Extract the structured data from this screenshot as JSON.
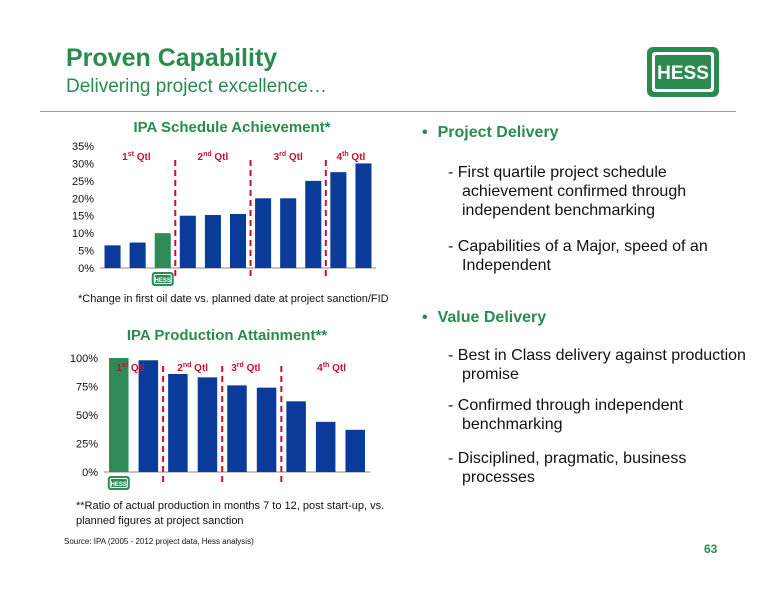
{
  "header": {
    "title": "Proven Capability",
    "subtitle": "Delivering project excellence…"
  },
  "logo": {
    "text": "HESS",
    "icon": "hess-logo"
  },
  "colors": {
    "green": "#2a8a4f",
    "bar_blue": "#0a3a9a",
    "bar_green": "#2e8b57",
    "quartile_red": "#c8102e"
  },
  "chart_data": [
    {
      "type": "bar",
      "title": "IPA Schedule Achievement*",
      "values": [
        6.5,
        7.3,
        10,
        15,
        15.2,
        15.5,
        20,
        20,
        25,
        27.5,
        30
      ],
      "highlight_index": 2,
      "yticks": [
        "0%",
        "5%",
        "10%",
        "15%",
        "20%",
        "25%",
        "30%",
        "35%"
      ],
      "ylim": [
        0,
        35
      ],
      "grid": false,
      "quartiles": [
        {
          "ordinal": "1",
          "suffix": "st",
          "label": "Qtl"
        },
        {
          "ordinal": "2",
          "suffix": "nd",
          "label": "Qtl"
        },
        {
          "ordinal": "3",
          "suffix": "rd",
          "label": "Qtl"
        },
        {
          "ordinal": "4",
          "suffix": "th",
          "label": "Qtl"
        }
      ],
      "footnote": "*Change in first oil date vs. planned date at project sanction/FID"
    },
    {
      "type": "bar",
      "title": "IPA Production Attainment**",
      "values": [
        100,
        98,
        86,
        83,
        76,
        74,
        62,
        44,
        37
      ],
      "highlight_index": 0,
      "yticks": [
        "0%",
        "25%",
        "50%",
        "75%",
        "100%"
      ],
      "ylim": [
        0,
        100
      ],
      "grid": false,
      "quartiles": [
        {
          "ordinal": "1",
          "suffix": "st",
          "label": "Qtl"
        },
        {
          "ordinal": "2",
          "suffix": "nd",
          "label": "Qtl"
        },
        {
          "ordinal": "3",
          "suffix": "rd",
          "label": "Qtl"
        },
        {
          "ordinal": "4",
          "suffix": "th",
          "label": "Qtl"
        }
      ],
      "footnote": "**Ratio of actual production in months 7 to 12, post start-up, vs. planned figures at project sanction"
    }
  ],
  "bullets": [
    {
      "heading": "Project Delivery",
      "items": [
        "First quartile project schedule achievement confirmed through independent benchmarking",
        "Capabilities of a Major, speed of an Independent"
      ]
    },
    {
      "heading": "Value Delivery",
      "items": [
        "Best in Class delivery against production promise",
        "Confirmed through independent benchmarking",
        "Disciplined, pragmatic, business processes"
      ]
    }
  ],
  "source": "Source: IPA (2005 - 2012 project data, Hess analysis)",
  "page_number": "63"
}
